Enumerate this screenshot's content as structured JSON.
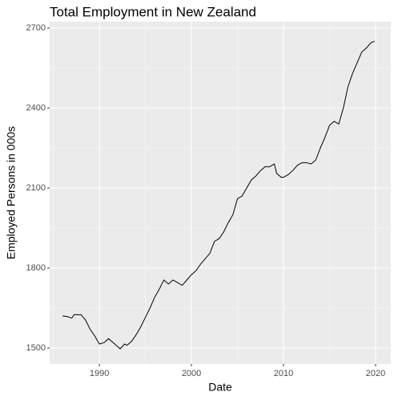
{
  "chart_data": {
    "type": "line",
    "title": "Total Employment in New Zealand",
    "x_label": "Date",
    "y_label": "Employed Persons in 000s",
    "x": [
      1986.0,
      1986.5,
      1987.0,
      1987.25,
      1988.0,
      1988.5,
      1989.0,
      1989.5,
      1990.0,
      1990.5,
      1991.0,
      1991.5,
      1992.0,
      1992.25,
      1992.75,
      1993.0,
      1993.5,
      1994.0,
      1994.5,
      1995.0,
      1995.5,
      1996.0,
      1996.5,
      1997.0,
      1997.5,
      1998.0,
      1998.5,
      1999.0,
      1999.5,
      2000.0,
      2000.5,
      2001.0,
      2001.5,
      2002.0,
      2002.5,
      2003.0,
      2003.5,
      2004.0,
      2004.5,
      2005.0,
      2005.5,
      2006.0,
      2006.5,
      2007.0,
      2007.5,
      2008.0,
      2008.5,
      2009.0,
      2009.25,
      2009.75,
      2010.0,
      2010.5,
      2011.0,
      2011.5,
      2012.0,
      2012.5,
      2013.0,
      2013.5,
      2014.0,
      2014.5,
      2015.0,
      2015.5,
      2016.0,
      2016.5,
      2017.0,
      2017.5,
      2018.0,
      2018.5,
      2019.0,
      2019.5,
      2019.9
    ],
    "series": [
      {
        "name": "Employed Persons in 000s",
        "color": "#000000",
        "values": [
          1620,
          1618,
          1612,
          1625,
          1625,
          1605,
          1570,
          1545,
          1515,
          1520,
          1535,
          1520,
          1505,
          1497,
          1515,
          1510,
          1525,
          1550,
          1580,
          1615,
          1650,
          1690,
          1720,
          1755,
          1740,
          1755,
          1745,
          1735,
          1755,
          1775,
          1790,
          1815,
          1835,
          1855,
          1900,
          1910,
          1935,
          1970,
          2000,
          2060,
          2070,
          2100,
          2130,
          2145,
          2165,
          2180,
          2180,
          2190,
          2155,
          2140,
          2140,
          2150,
          2165,
          2185,
          2195,
          2195,
          2190,
          2205,
          2250,
          2290,
          2335,
          2350,
          2340,
          2400,
          2480,
          2530,
          2570,
          2610,
          2625,
          2645,
          2650
        ]
      }
    ],
    "xlim": [
      1984.6,
      2021.65
    ],
    "xticks": [
      1990,
      2000,
      2010,
      2020
    ],
    "xminor": [
      1985,
      1995,
      2005,
      2015
    ],
    "ylim": [
      1440,
      2724
    ],
    "yticks": [
      1500,
      1800,
      2100,
      2400,
      2700
    ],
    "yminor": [
      1650,
      1950,
      2250,
      2550
    ],
    "grid": true
  }
}
